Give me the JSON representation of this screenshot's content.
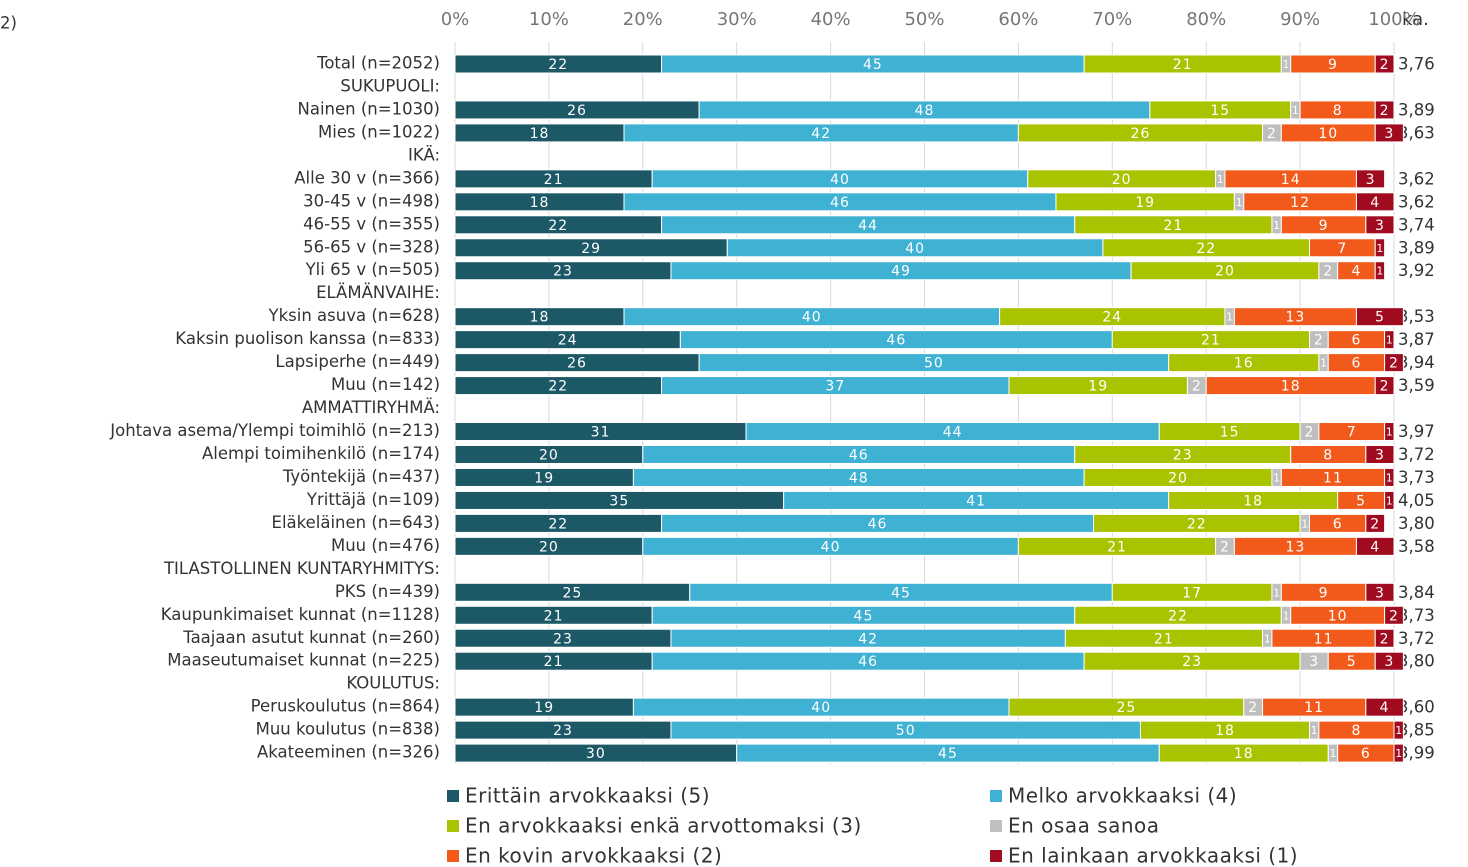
{
  "chart_data": {
    "type": "stacked_bar_horizontal",
    "note": "2)",
    "average_header": "ka.",
    "categories": [
      "Total (n=2052)",
      "SUKUPUOLI:",
      "Nainen (n=1030)",
      "Mies (n=1022)",
      "IKÄ:",
      "Alle 30 v (n=366)",
      "30-45 v (n=498)",
      "46-55 v (n=355)",
      "56-65 v (n=328)",
      "Yli 65 v (n=505)",
      "ELÄMÄNVAIHE:",
      "Yksin asuva (n=628)",
      "Kaksin puolison kanssa (n=833)",
      "Lapsiperhe (n=449)",
      "Muu (n=142)",
      "AMMATTIRYHMÄ:",
      "Johtava asema/Ylempi toimihlö (n=213)",
      "Alempi toimihenkilö (n=174)",
      "Työntekijä (n=437)",
      "Yrittäjä (n=109)",
      "Eläkeläinen (n=643)",
      "Muu (n=476)",
      "TILASTOLLINEN KUNTARYHMITYS:",
      "PKS (n=439)",
      "Kaupunkimaiset kunnat (n=1128)",
      "Taajaan asutut kunnat (n=260)",
      "Maaseutumaiset kunnat (n=225)",
      "KOULUTUS:",
      "Peruskoulutus (n=864)",
      "Muu koulutus (n=838)",
      "Akateeminen (n=326)"
    ],
    "averages": [
      "3,76",
      null,
      "3,89",
      "3,63",
      null,
      "3,62",
      "3,62",
      "3,74",
      "3,89",
      "3,92",
      null,
      "3,53",
      "3,87",
      "3,94",
      "3,59",
      null,
      "3,97",
      "3,72",
      "3,73",
      "4,05",
      "3,80",
      "3,58",
      null,
      "3,84",
      "3,73",
      "3,72",
      "3,80",
      null,
      "3,60",
      "3,85",
      "3,99"
    ],
    "series": [
      {
        "name": "Erittäin arvokkaaksi (5)",
        "color": "#1d5867",
        "values": [
          22,
          null,
          26,
          18,
          null,
          21,
          18,
          22,
          29,
          23,
          null,
          18,
          24,
          26,
          22,
          null,
          31,
          20,
          19,
          35,
          22,
          20,
          null,
          25,
          21,
          23,
          21,
          null,
          19,
          23,
          30
        ]
      },
      {
        "name": "Melko arvokkaaksi (4)",
        "color": "#3fb1d3",
        "values": [
          45,
          null,
          48,
          42,
          null,
          40,
          46,
          44,
          40,
          49,
          null,
          40,
          46,
          50,
          37,
          null,
          44,
          46,
          48,
          41,
          46,
          40,
          null,
          45,
          45,
          42,
          46,
          null,
          40,
          50,
          45
        ]
      },
      {
        "name": "En arvokkaaksi enkä arvottomaksi (3)",
        "color": "#a9c300",
        "values": [
          21,
          null,
          15,
          26,
          null,
          20,
          19,
          21,
          22,
          20,
          null,
          24,
          21,
          16,
          19,
          null,
          15,
          23,
          20,
          18,
          22,
          21,
          null,
          17,
          22,
          21,
          23,
          null,
          25,
          18,
          18
        ]
      },
      {
        "name": "En osaa sanoa",
        "color": "#bfbfbf",
        "values": [
          1,
          null,
          1,
          2,
          null,
          1,
          1,
          1,
          null,
          2,
          null,
          1,
          2,
          1,
          2,
          null,
          2,
          null,
          1,
          null,
          1,
          2,
          null,
          1,
          1,
          1,
          3,
          null,
          2,
          1,
          1
        ]
      },
      {
        "name": "En kovin arvokkaaksi (2)",
        "color": "#f15a1b",
        "values": [
          9,
          null,
          8,
          10,
          null,
          14,
          12,
          9,
          7,
          4,
          null,
          13,
          6,
          6,
          18,
          null,
          7,
          8,
          11,
          5,
          6,
          13,
          null,
          9,
          10,
          11,
          5,
          null,
          11,
          8,
          6
        ]
      },
      {
        "name": "En lainkaan arvokkaaksi (1)",
        "color": "#a00b1f",
        "values": [
          2,
          null,
          2,
          3,
          null,
          3,
          4,
          3,
          1,
          1,
          null,
          5,
          1,
          2,
          2,
          null,
          1,
          3,
          1,
          1,
          2,
          4,
          null,
          3,
          2,
          2,
          3,
          null,
          4,
          1,
          1
        ]
      }
    ],
    "xlim": [
      0,
      100
    ],
    "xticks": [
      {
        "value": 0,
        "label": "0%"
      },
      {
        "value": 10,
        "label": "10%"
      },
      {
        "value": 20,
        "label": "20%"
      },
      {
        "value": 30,
        "label": "30%"
      },
      {
        "value": 40,
        "label": "40%"
      },
      {
        "value": 50,
        "label": "50%"
      },
      {
        "value": 60,
        "label": "60%"
      },
      {
        "value": 70,
        "label": "70%"
      },
      {
        "value": 80,
        "label": "80%"
      },
      {
        "value": 90,
        "label": "90%"
      },
      {
        "value": 100,
        "label": "100%"
      }
    ],
    "grid": true
  }
}
